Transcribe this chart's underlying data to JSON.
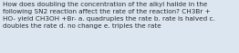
{
  "text": "How does doubling the concentration of the alkyl halide in the\nfollowing SN2 reaction affect the rate of the reaction? CH3Br +\nHO- yield CH3OH +Br- a. quadruples the rate b. rate is halved c.\ndoubles the rate d. no change e. triples the rate",
  "background_color": "#dce6f1",
  "text_color": "#2a2a2a",
  "font_size": 5.2,
  "figwidth": 2.62,
  "figheight": 0.59,
  "dpi": 100
}
